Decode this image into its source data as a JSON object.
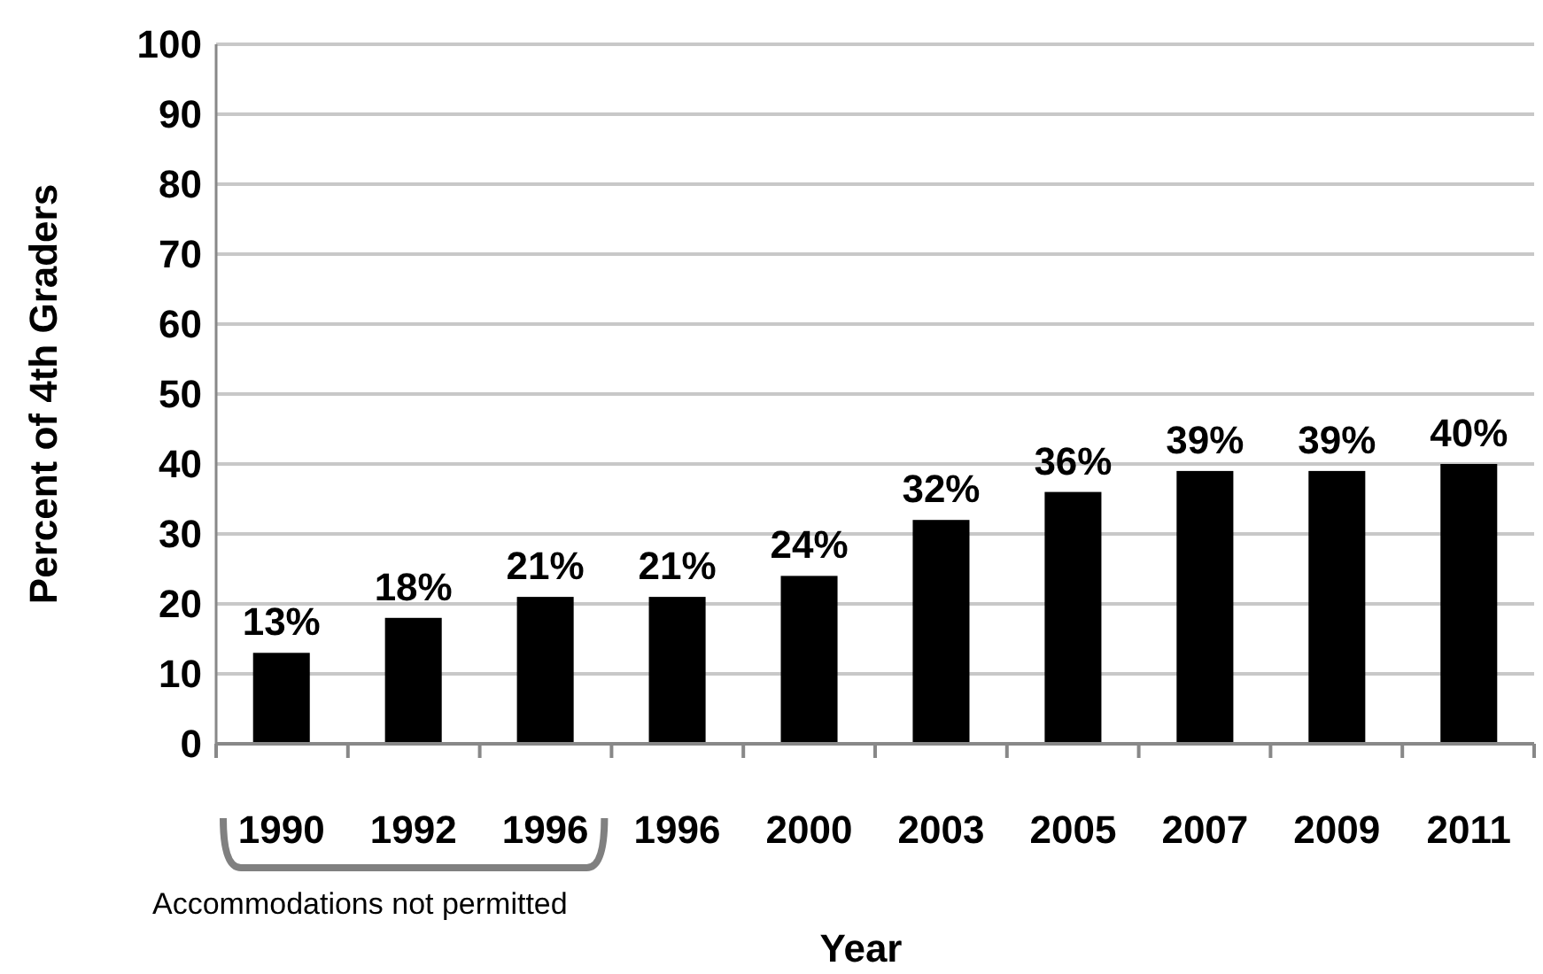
{
  "chart_data": {
    "type": "bar",
    "xlabel": "Year",
    "ylabel": "Percent of 4th Graders",
    "categories": [
      "1990",
      "1992",
      "1996",
      "1996",
      "2000",
      "2003",
      "2005",
      "2007",
      "2009",
      "2011"
    ],
    "values": [
      13,
      18,
      21,
      21,
      24,
      32,
      36,
      39,
      39,
      40
    ],
    "value_labels": [
      "13%",
      "18%",
      "21%",
      "21%",
      "24%",
      "32%",
      "36%",
      "39%",
      "39%",
      "40%"
    ],
    "color": "#000000",
    "ylim": [
      0,
      100
    ],
    "yticks": [
      0,
      10,
      20,
      30,
      40,
      50,
      60,
      70,
      80,
      90,
      100
    ],
    "grid": "y",
    "annotations": [
      "Accommodations not permitted"
    ]
  }
}
